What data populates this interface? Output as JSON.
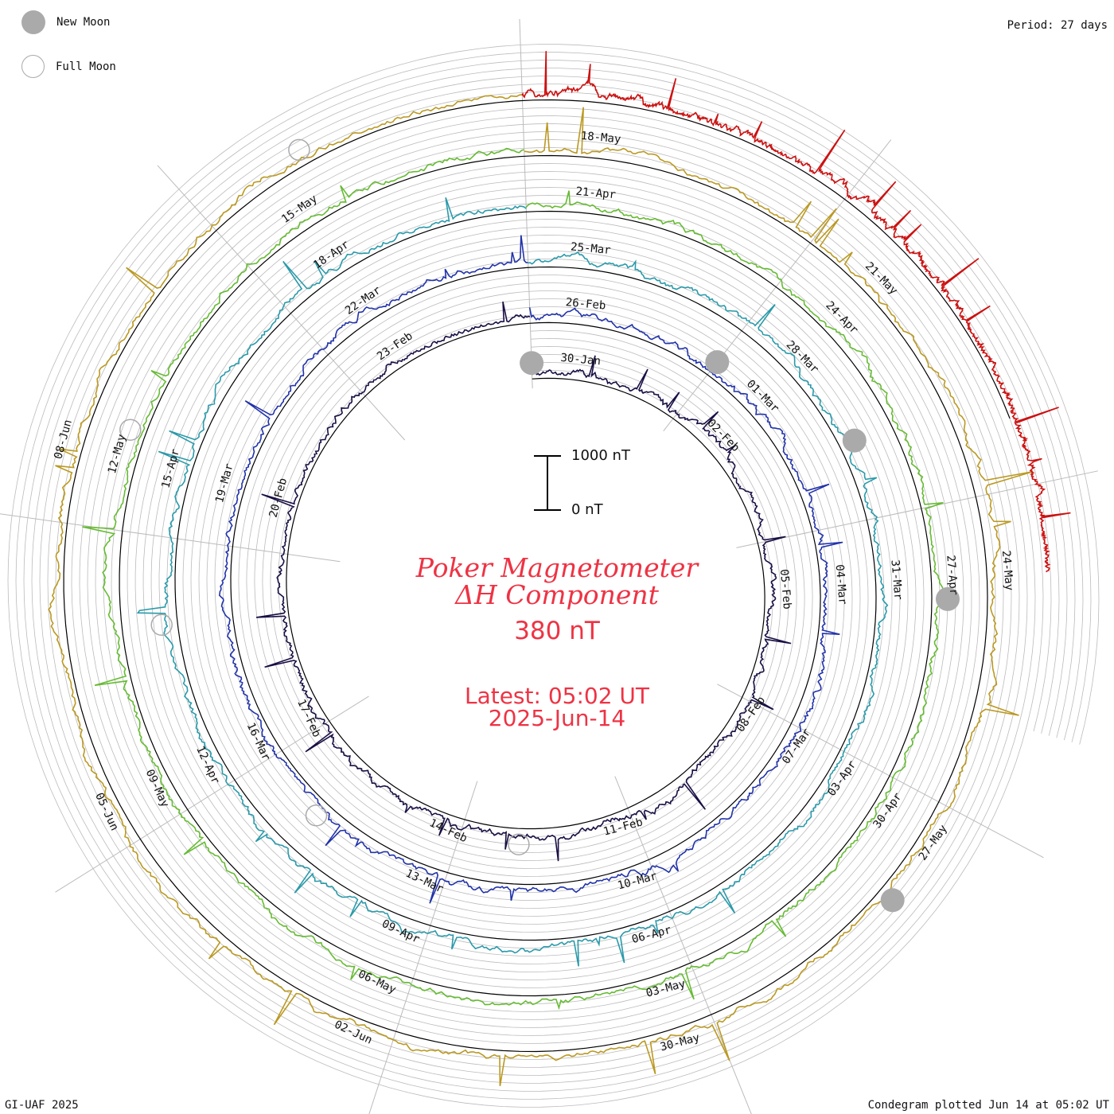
{
  "legend": {
    "new_moon": "New Moon",
    "full_moon": "Full Moon"
  },
  "period": "Period: 27 days",
  "footer_left": "GI-UAF 2025",
  "footer_right": "Condegram plotted Jun 14 at 05:02 UT",
  "scale": {
    "top_label": "1000 nT",
    "bottom_label": "0 nT"
  },
  "center": {
    "title_line1": "Poker Magnetometer",
    "title_line2": "ΔH Component",
    "range_value": "380 nT",
    "latest_time": "Latest: 05:02 UT",
    "latest_date": "2025-Jun-14"
  },
  "colors": {
    "accent": "#ee3344",
    "grid": "#bbbbbb",
    "ring": "#000000",
    "moon": "#aaaaaa"
  },
  "chart_data": {
    "type": "line",
    "period_days": 27,
    "ring_start_dates": [
      "2025-01-29",
      "2025-02-25",
      "2025-03-24",
      "2025-04-20",
      "2025-05-17",
      "2025-06-13"
    ],
    "series": [
      {
        "color": "#1a0f44",
        "date_labels": [
          "30-Jan",
          "02-Feb",
          "05-Feb",
          "08-Feb",
          "11-Feb",
          "14-Feb",
          "17-Feb",
          "20-Feb",
          "23-Feb"
        ]
      },
      {
        "color": "#2233aa",
        "date_labels": [
          "26-Feb",
          "01-Mar",
          "04-Mar",
          "07-Mar",
          "10-Mar",
          "13-Mar",
          "16-Mar",
          "19-Mar",
          "22-Mar"
        ]
      },
      {
        "color": "#2a9aaa",
        "date_labels": [
          "25-Mar",
          "28-Mar",
          "31-Mar",
          "03-Apr",
          "06-Apr",
          "09-Apr",
          "12-Apr",
          "15-Apr",
          "18-Apr"
        ]
      },
      {
        "color": "#66bb33",
        "date_labels": [
          "21-Apr",
          "24-Apr",
          "27-Apr",
          "30-Apr",
          "03-May",
          "06-May",
          "09-May",
          "12-May",
          "15-May"
        ]
      },
      {
        "color": "#bb9922",
        "date_labels": [
          "18-May",
          "21-May",
          "24-May",
          "27-May",
          "30-May",
          "02-Jun",
          "05-Jun",
          "08-Jun"
        ]
      },
      {
        "color": "#cc1111",
        "date_labels": []
      }
    ],
    "new_moons": [
      "2025-01-29",
      "2025-02-28",
      "2025-03-29",
      "2025-04-27",
      "2025-05-27"
    ],
    "full_moons": [
      "2025-02-12",
      "2025-03-14",
      "2025-04-13",
      "2025-05-12",
      "2025-06-11"
    ],
    "scale_nT": [
      0,
      1000
    ],
    "grid": true
  }
}
